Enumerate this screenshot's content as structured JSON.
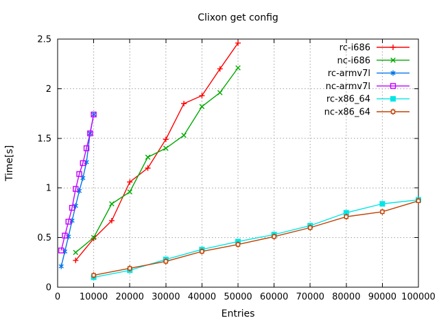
{
  "chart_data": {
    "type": "line",
    "title": "Clixon get config",
    "xlabel": "Entries",
    "ylabel": "Time[s]",
    "xlim": [
      0,
      100000
    ],
    "ylim": [
      0,
      2.5
    ],
    "grid": true,
    "legend_position": "top-right-inside",
    "x_ticks": [
      0,
      10000,
      20000,
      30000,
      40000,
      50000,
      60000,
      70000,
      80000,
      90000,
      100000
    ],
    "x_tick_labels": [
      "0",
      "10000",
      "20000",
      "30000",
      "40000",
      "50000",
      "60000",
      "70000",
      "80000",
      "90000",
      "100000"
    ],
    "y_ticks": [
      0,
      0.5,
      1,
      1.5,
      2,
      2.5
    ],
    "y_tick_labels": [
      "0",
      "0.5",
      "1",
      "1.5",
      "2",
      "2.5"
    ],
    "colors": {
      "axis": "#000000",
      "grid": "#9e9e9e",
      "background": "#ffffff"
    },
    "series": [
      {
        "name": "rc-i686",
        "color": "#ff0000",
        "marker": "plus",
        "x": [
          5000,
          10000,
          15000,
          20000,
          25000,
          30000,
          35000,
          40000,
          45000,
          50000
        ],
        "y": [
          0.27,
          0.49,
          0.67,
          1.06,
          1.2,
          1.49,
          1.85,
          1.93,
          2.2,
          2.46
        ]
      },
      {
        "name": "nc-i686",
        "color": "#00a800",
        "marker": "cross",
        "x": [
          5000,
          10000,
          15000,
          20000,
          25000,
          30000,
          35000,
          40000,
          45000,
          50000
        ],
        "y": [
          0.35,
          0.5,
          0.84,
          0.96,
          1.31,
          1.4,
          1.53,
          1.82,
          1.96,
          2.21
        ]
      },
      {
        "name": "rc-armv7l",
        "color": "#0074e8",
        "marker": "asterisk",
        "x": [
          1000,
          2000,
          3000,
          4000,
          5000,
          6000,
          7000,
          8000,
          9000,
          10000
        ],
        "y": [
          0.21,
          0.36,
          0.51,
          0.67,
          0.82,
          0.97,
          1.1,
          1.26,
          1.55,
          1.74
        ]
      },
      {
        "name": "nc-armv7l",
        "color": "#c000ff",
        "marker": "open-square",
        "x": [
          1000,
          2000,
          3000,
          4000,
          5000,
          6000,
          7000,
          8000,
          9000,
          10000
        ],
        "y": [
          0.37,
          0.52,
          0.66,
          0.8,
          0.99,
          1.14,
          1.25,
          1.4,
          1.55,
          1.74
        ]
      },
      {
        "name": "rc-x86_64",
        "color": "#00e5e5",
        "marker": "filled-square",
        "x": [
          10000,
          20000,
          30000,
          40000,
          50000,
          60000,
          70000,
          80000,
          90000,
          100000
        ],
        "y": [
          0.1,
          0.17,
          0.28,
          0.38,
          0.46,
          0.53,
          0.62,
          0.75,
          0.84,
          0.88
        ]
      },
      {
        "name": "nc-x86_64",
        "color": "#c04000",
        "marker": "open-square-plus",
        "x": [
          10000,
          20000,
          30000,
          40000,
          50000,
          60000,
          70000,
          80000,
          90000,
          100000
        ],
        "y": [
          0.12,
          0.19,
          0.26,
          0.36,
          0.43,
          0.51,
          0.6,
          0.71,
          0.76,
          0.87
        ]
      }
    ]
  }
}
